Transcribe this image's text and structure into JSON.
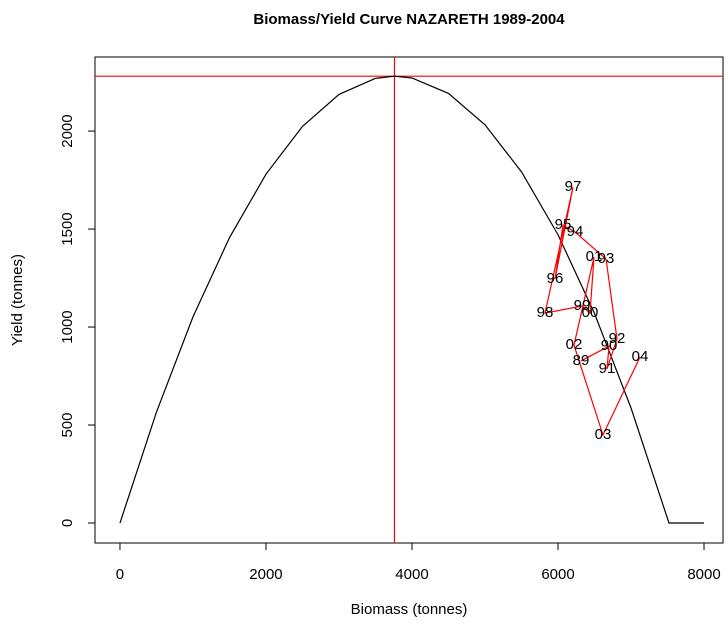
{
  "chart_data": {
    "type": "line",
    "title": "Biomass/Yield Curve NAZARETH 1989-2004",
    "x_label": "Biomass (tonnes)",
    "y_label": "Yield (tonnes)",
    "xlim": [
      -342,
      8260
    ],
    "ylim": [
      -102,
      2378
    ],
    "xticks": [
      0,
      2000,
      4000,
      6000,
      8000
    ],
    "yticks": [
      0,
      500,
      1000,
      1500,
      2000
    ],
    "reference_lines": {
      "x": 3760,
      "y": 2280,
      "color": "#ff0000"
    },
    "series": [
      {
        "color": "#000000",
        "x": [
          0,
          500,
          1000,
          1500,
          2000,
          2500,
          3000,
          3500,
          3760,
          4000,
          4500,
          5000,
          5500,
          6000,
          6500,
          7000,
          7520,
          8000
        ],
        "values": [
          0,
          566,
          1052,
          1456,
          1780,
          2024,
          2187,
          2269,
          2280,
          2271,
          2192,
          2032,
          1792,
          1471,
          1069,
          587,
          0,
          0
        ]
      },
      {
        "color": "#ff0000",
        "labels": [
          "89",
          "90",
          "91",
          "92",
          "93",
          "94",
          "95",
          "96",
          "97",
          "98",
          "99",
          "00",
          "01",
          "02",
          "03",
          "04"
        ],
        "x": [
          6315,
          6699,
          6671,
          6808,
          6658,
          6233,
          6068,
          5959,
          6205,
          5822,
          6329,
          6438,
          6493,
          6219,
          6616,
          7123
        ],
        "values": [
          827,
          903,
          786,
          939,
          1347,
          1485,
          1520,
          1245,
          1714,
          1071,
          1107,
          1071,
          1357,
          908,
          449,
          847
        ]
      }
    ]
  }
}
